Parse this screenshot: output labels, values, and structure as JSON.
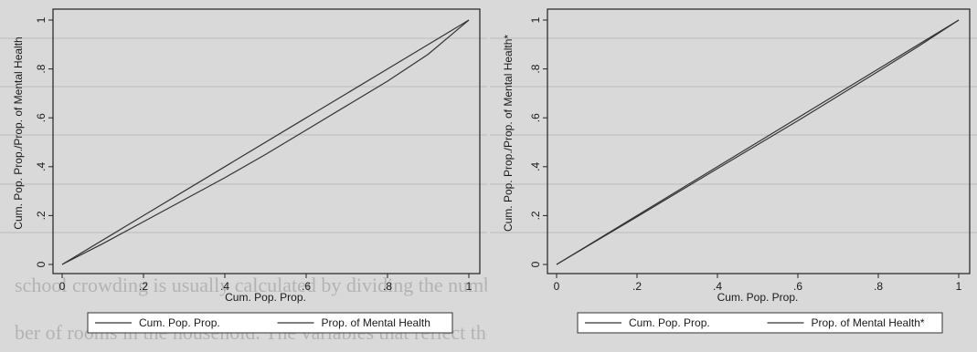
{
  "chart_data": [
    {
      "type": "line",
      "title": "",
      "xlabel": "Cum. Pop. Prop.",
      "ylabel": "Cum. Pop. Prop./Prop. of Mental Health",
      "xlim": [
        0,
        1
      ],
      "ylim": [
        0,
        1
      ],
      "x_ticks": [
        "0",
        ".2",
        ".4",
        ".6",
        ".8",
        "1"
      ],
      "y_ticks": [
        "0",
        ".2",
        ".4",
        ".6",
        ".8",
        "1"
      ],
      "legend_position": "bottom",
      "series": [
        {
          "name": "Cum. Pop. Prop.",
          "x": [
            0.0,
            0.2,
            0.4,
            0.6,
            0.8,
            1.0
          ],
          "y": [
            0.0,
            0.2,
            0.4,
            0.6,
            0.8,
            1.0
          ]
        },
        {
          "name": "Prop. of Mental Health",
          "x": [
            0.0,
            0.1,
            0.2,
            0.3,
            0.4,
            0.5,
            0.6,
            0.7,
            0.8,
            0.9,
            1.0
          ],
          "y": [
            0.0,
            0.085,
            0.175,
            0.265,
            0.355,
            0.45,
            0.55,
            0.65,
            0.75,
            0.86,
            1.0
          ]
        }
      ]
    },
    {
      "type": "line",
      "title": "",
      "xlabel": "Cum. Pop. Prop.",
      "ylabel": "Cum. Pop. Prop./Prop. of Mental Health*",
      "xlim": [
        0,
        1
      ],
      "ylim": [
        0,
        1
      ],
      "x_ticks": [
        "0",
        ".2",
        ".4",
        ".6",
        ".8",
        "1"
      ],
      "y_ticks": [
        "0",
        ".2",
        ".4",
        ".6",
        ".8",
        "1"
      ],
      "legend_position": "bottom",
      "series": [
        {
          "name": "Cum. Pop. Prop.",
          "x": [
            0.0,
            0.2,
            0.4,
            0.6,
            0.8,
            1.0
          ],
          "y": [
            0.0,
            0.2,
            0.4,
            0.6,
            0.8,
            1.0
          ]
        },
        {
          "name": "Prop. of Mental Health*",
          "x": [
            0.0,
            0.2,
            0.4,
            0.6,
            0.8,
            0.9,
            1.0
          ],
          "y": [
            0.0,
            0.195,
            0.392,
            0.588,
            0.79,
            0.893,
            1.0
          ]
        }
      ]
    }
  ],
  "background_text": {
    "line1": "school crowding is usually calculated by dividing the number of household members by the",
    "line2": "ber of rooms in the household. The variables that reflect these characteristics are"
  }
}
